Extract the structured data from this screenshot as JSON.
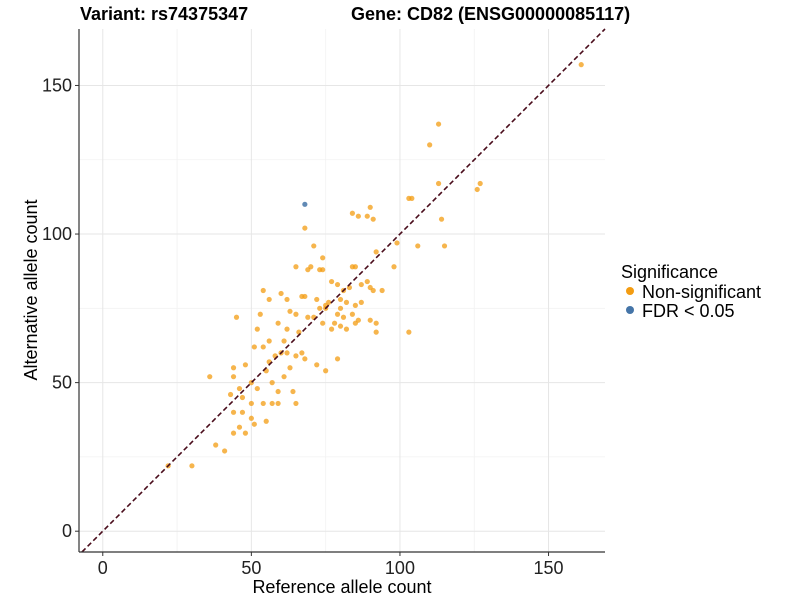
{
  "chart_data": {
    "type": "scatter",
    "title_left": "Variant: rs74375347",
    "title_right": "Gene: CD82 (ENSG00000085117)",
    "xlabel": "Reference allele count",
    "ylabel": "Alternative allele count",
    "xlim": [
      -8,
      169
    ],
    "ylim": [
      -7,
      169
    ],
    "xticks": [
      0,
      50,
      100,
      150
    ],
    "yticks": [
      0,
      50,
      100,
      150
    ],
    "grid": true,
    "reference_line": {
      "type": "identity",
      "style": "dashed",
      "color": "#4a0d1c"
    },
    "legend": {
      "title": "Significance",
      "placement": "right",
      "items": [
        {
          "label": "Non-significant",
          "color": "#f39c12"
        },
        {
          "label": "FDR < 0.05",
          "color": "#4575a8"
        }
      ]
    },
    "series": [
      {
        "name": "Non-significant",
        "color": "#f39c12",
        "points": [
          [
            161,
            157
          ],
          [
            113,
            137
          ],
          [
            110,
            130
          ],
          [
            127,
            117
          ],
          [
            126,
            115
          ],
          [
            113,
            117
          ],
          [
            103,
            112
          ],
          [
            104,
            112
          ],
          [
            114,
            105
          ],
          [
            89,
            106
          ],
          [
            90,
            109
          ],
          [
            91,
            105
          ],
          [
            84,
            107
          ],
          [
            86,
            106
          ],
          [
            68,
            102
          ],
          [
            99,
            97
          ],
          [
            106,
            96
          ],
          [
            115,
            96
          ],
          [
            71,
            96
          ],
          [
            92,
            94
          ],
          [
            74,
            92
          ],
          [
            70,
            89
          ],
          [
            73,
            88
          ],
          [
            65,
            89
          ],
          [
            69,
            88
          ],
          [
            74,
            88
          ],
          [
            98,
            89
          ],
          [
            84,
            89
          ],
          [
            85,
            89
          ],
          [
            79,
            83
          ],
          [
            77,
            84
          ],
          [
            83,
            82
          ],
          [
            87,
            83
          ],
          [
            89,
            84
          ],
          [
            90,
            82
          ],
          [
            91,
            81
          ],
          [
            81,
            81
          ],
          [
            94,
            81
          ],
          [
            67,
            79
          ],
          [
            68,
            79
          ],
          [
            62,
            78
          ],
          [
            72,
            78
          ],
          [
            80,
            78
          ],
          [
            76,
            77
          ],
          [
            75,
            76
          ],
          [
            82,
            77
          ],
          [
            85,
            76
          ],
          [
            87,
            77
          ],
          [
            54,
            81
          ],
          [
            56,
            78
          ],
          [
            60,
            80
          ],
          [
            73,
            75
          ],
          [
            75,
            75
          ],
          [
            80,
            75
          ],
          [
            63,
            74
          ],
          [
            65,
            73
          ],
          [
            69,
            72
          ],
          [
            71,
            72
          ],
          [
            79,
            73
          ],
          [
            81,
            72
          ],
          [
            84,
            73
          ],
          [
            86,
            71
          ],
          [
            90,
            71
          ],
          [
            74,
            70
          ],
          [
            78,
            70
          ],
          [
            92,
            70
          ],
          [
            45,
            72
          ],
          [
            53,
            73
          ],
          [
            59,
            70
          ],
          [
            77,
            68
          ],
          [
            80,
            69
          ],
          [
            82,
            68
          ],
          [
            85,
            70
          ],
          [
            92,
            67
          ],
          [
            103,
            67
          ],
          [
            52,
            68
          ],
          [
            62,
            68
          ],
          [
            66,
            67
          ],
          [
            56,
            64
          ],
          [
            61,
            64
          ],
          [
            51,
            62
          ],
          [
            54,
            62
          ],
          [
            62,
            60
          ],
          [
            67,
            60
          ],
          [
            60,
            60
          ],
          [
            58,
            59
          ],
          [
            65,
            59
          ],
          [
            79,
            58
          ],
          [
            68,
            58
          ],
          [
            72,
            56
          ],
          [
            75,
            54
          ],
          [
            56,
            57
          ],
          [
            63,
            55
          ],
          [
            48,
            56
          ],
          [
            44,
            55
          ],
          [
            55,
            54
          ],
          [
            44,
            52
          ],
          [
            61,
            52
          ],
          [
            36,
            52
          ],
          [
            50,
            50
          ],
          [
            46,
            48
          ],
          [
            52,
            48
          ],
          [
            57,
            50
          ],
          [
            59,
            47
          ],
          [
            64,
            47
          ],
          [
            47,
            45
          ],
          [
            43,
            46
          ],
          [
            50,
            43
          ],
          [
            54,
            43
          ],
          [
            57,
            43
          ],
          [
            59,
            43
          ],
          [
            65,
            43
          ],
          [
            44,
            40
          ],
          [
            47,
            40
          ],
          [
            50,
            38
          ],
          [
            55,
            37
          ],
          [
            51,
            36
          ],
          [
            46,
            35
          ],
          [
            48,
            33
          ],
          [
            44,
            33
          ],
          [
            38,
            29
          ],
          [
            41,
            27
          ],
          [
            22,
            22
          ],
          [
            30,
            22
          ]
        ]
      },
      {
        "name": "FDR < 0.05",
        "color": "#4575a8",
        "points": [
          [
            68,
            110
          ]
        ]
      }
    ]
  }
}
